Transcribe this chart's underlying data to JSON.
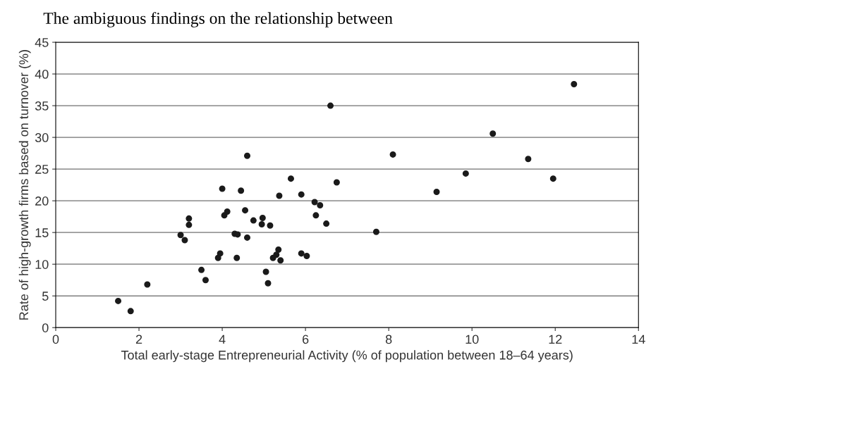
{
  "chart_data": {
    "type": "scatter",
    "title": "The ambiguous findings on the relationship between",
    "xlabel": "Total early-stage Entrepreneurial Activity (% of population between 18–64 years)",
    "ylabel": "Rate of high-growth firms based on turnover (%)",
    "x": [
      1.5,
      1.8,
      2.2,
      3.0,
      3.1,
      3.2,
      3.2,
      3.5,
      3.6,
      3.9,
      3.95,
      4.0,
      4.05,
      4.12,
      4.3,
      4.37,
      4.35,
      4.45,
      4.55,
      4.6,
      4.6,
      4.75,
      4.95,
      4.97,
      5.05,
      5.1,
      5.15,
      5.22,
      5.3,
      5.35,
      5.4,
      5.37,
      5.65,
      5.9,
      5.9,
      6.03,
      6.22,
      6.25,
      6.35,
      6.5,
      6.6,
      6.75,
      7.7,
      8.1,
      9.15,
      9.85,
      10.5,
      11.35,
      11.95,
      12.45
    ],
    "series": [
      {
        "color": "#1a1a1a",
        "values": [
          4.2,
          2.6,
          6.8,
          14.6,
          13.8,
          16.2,
          17.2,
          9.1,
          7.5,
          11.0,
          11.7,
          21.9,
          17.7,
          18.3,
          14.8,
          14.7,
          11.0,
          21.6,
          18.5,
          27.1,
          14.2,
          16.9,
          16.3,
          17.3,
          8.8,
          7.0,
          16.1,
          11.0,
          11.5,
          12.3,
          10.6,
          20.8,
          23.5,
          21.0,
          11.7,
          11.3,
          19.8,
          17.7,
          19.3,
          16.4,
          35.0,
          22.9,
          15.1,
          27.3,
          21.4,
          24.3,
          30.6,
          26.6,
          23.5,
          38.4
        ]
      }
    ],
    "xlim": [
      0,
      14
    ],
    "xticks": [
      0,
      2,
      4,
      6,
      8,
      10,
      12,
      14
    ],
    "ylim": [
      0,
      45
    ],
    "yticks": [
      0,
      5,
      10,
      15,
      20,
      25,
      30,
      35,
      40,
      45
    ],
    "grid": "y",
    "marker": "circle",
    "legend": false
  }
}
